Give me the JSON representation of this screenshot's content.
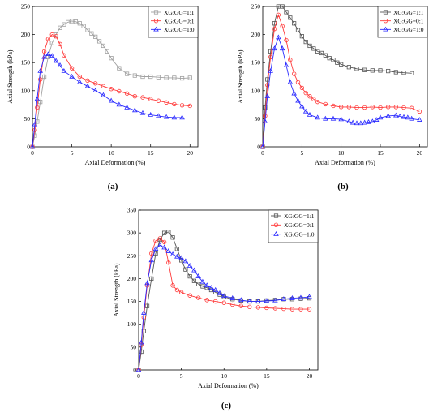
{
  "chart_data": [
    {
      "type": "line",
      "panel_label": "(a)",
      "xlabel": "Axial Deformation (%)",
      "ylabel": "Axial Strength (kPa)",
      "xlim": [
        0,
        21
      ],
      "ylim": [
        0,
        250
      ],
      "xticks": [
        0,
        5,
        10,
        15,
        20
      ],
      "yticks": [
        0,
        50,
        100,
        150,
        200,
        250
      ],
      "legend_placement": "top-right",
      "series": [
        {
          "name": "XG:GG=1:1",
          "color": "#a0a0a0",
          "marker": "square",
          "x": [
            0,
            0.3,
            0.6,
            1,
            1.5,
            2,
            2.5,
            3,
            3.5,
            4,
            4.5,
            5,
            5.5,
            6,
            6.5,
            7,
            7.5,
            8,
            8.5,
            9,
            9.5,
            10,
            11,
            12,
            13,
            14,
            15,
            16,
            17,
            18,
            19,
            20
          ],
          "y": [
            0,
            20,
            45,
            80,
            125,
            160,
            185,
            200,
            212,
            218,
            222,
            224,
            223,
            220,
            215,
            208,
            202,
            196,
            188,
            180,
            170,
            158,
            140,
            130,
            127,
            125,
            125,
            124,
            123,
            123,
            122,
            123
          ]
        },
        {
          "name": "XG:GG=0:1",
          "color": "#ff3b3b",
          "marker": "circle",
          "x": [
            0,
            0.3,
            0.6,
            1,
            1.5,
            2,
            2.5,
            3,
            3.5,
            4,
            5,
            6,
            7,
            8,
            9,
            10,
            11,
            12,
            13,
            14,
            15,
            16,
            17,
            18,
            19,
            20
          ],
          "y": [
            0,
            30,
            70,
            120,
            170,
            192,
            200,
            197,
            183,
            163,
            140,
            125,
            118,
            113,
            108,
            103,
            99,
            95,
            90,
            88,
            85,
            82,
            79,
            76,
            74,
            73
          ]
        },
        {
          "name": "XG:GG=1:0",
          "color": "#2a2aff",
          "marker": "triangle",
          "x": [
            0,
            0.3,
            0.6,
            1,
            1.5,
            2,
            2.5,
            3,
            3.5,
            4,
            5,
            6,
            7,
            8,
            9,
            10,
            11,
            12,
            13,
            14,
            15,
            16,
            17,
            18,
            19
          ],
          "y": [
            0,
            40,
            85,
            135,
            160,
            165,
            162,
            153,
            145,
            135,
            125,
            115,
            108,
            100,
            92,
            82,
            75,
            70,
            65,
            60,
            57,
            55,
            53,
            52,
            52
          ]
        }
      ]
    },
    {
      "type": "line",
      "panel_label": "(b)",
      "xlabel": "Axial Deformation (%)",
      "ylabel": "Axial Strength (kPa)",
      "xlim": [
        0,
        21
      ],
      "ylim": [
        0,
        250
      ],
      "xticks": [
        0,
        5,
        10,
        15,
        20
      ],
      "yticks": [
        0,
        50,
        100,
        150,
        200,
        250
      ],
      "legend_placement": "top-right",
      "series": [
        {
          "name": "XG:GG=1:1",
          "color": "#555555",
          "marker": "square",
          "x": [
            0,
            0.3,
            0.6,
            1,
            1.5,
            2,
            2.5,
            3,
            3.5,
            4,
            4.5,
            5,
            5.5,
            6,
            6.5,
            7,
            7.5,
            8,
            8.5,
            9,
            9.5,
            10,
            11,
            12,
            13,
            14,
            15,
            16,
            17,
            18,
            19
          ],
          "y": [
            0,
            70,
            120,
            170,
            220,
            250,
            250,
            240,
            230,
            220,
            208,
            197,
            187,
            180,
            175,
            170,
            167,
            163,
            158,
            155,
            150,
            147,
            142,
            139,
            137,
            136,
            136,
            135,
            133,
            132,
            131
          ]
        },
        {
          "name": "XG:GG=0:1",
          "color": "#ff3b3b",
          "marker": "circle",
          "x": [
            0,
            0.3,
            0.6,
            1,
            1.5,
            2,
            2.5,
            3,
            3.5,
            4,
            4.5,
            5,
            5.5,
            6,
            6.5,
            7,
            8,
            9,
            10,
            11,
            12,
            13,
            14,
            15,
            16,
            17,
            18,
            19,
            20
          ],
          "y": [
            0,
            55,
            110,
            160,
            210,
            235,
            215,
            190,
            155,
            130,
            115,
            105,
            96,
            90,
            85,
            80,
            76,
            73,
            71,
            71,
            70,
            70,
            71,
            70,
            71,
            71,
            70,
            69,
            63
          ]
        },
        {
          "name": "XG:GG=1:0",
          "color": "#2a2aff",
          "marker": "triangle",
          "x": [
            0,
            0.3,
            0.6,
            1,
            1.5,
            2,
            2.5,
            3,
            3.5,
            4,
            4.5,
            5,
            5.5,
            6,
            7,
            8,
            9,
            10,
            11,
            11.5,
            12,
            12.5,
            13,
            13.5,
            14,
            14.5,
            15,
            16,
            17,
            17.5,
            18,
            18.5,
            19,
            20
          ],
          "y": [
            0,
            45,
            90,
            135,
            175,
            195,
            175,
            145,
            115,
            95,
            82,
            72,
            63,
            57,
            52,
            50,
            50,
            49,
            45,
            43,
            42,
            42,
            43,
            44,
            45,
            48,
            52,
            55,
            56,
            54,
            53,
            52,
            50,
            48
          ]
        }
      ]
    },
    {
      "type": "line",
      "panel_label": "(c)",
      "xlabel": "Axial Deformation (%)",
      "ylabel": "Axial Strength (kPa)",
      "xlim": [
        0,
        21
      ],
      "ylim": [
        0,
        350
      ],
      "xticks": [
        0,
        5,
        10,
        15,
        20
      ],
      "yticks": [
        0,
        50,
        100,
        150,
        200,
        250,
        300,
        350
      ],
      "legend_placement": "top-right",
      "series": [
        {
          "name": "XG:GG=1:1",
          "color": "#555555",
          "marker": "square",
          "x": [
            0,
            0.3,
            0.6,
            1,
            1.5,
            2,
            2.5,
            3,
            3.5,
            4,
            4.5,
            5,
            5.5,
            6,
            6.5,
            7,
            7.5,
            8,
            8.5,
            9,
            9.5,
            10,
            11,
            12,
            13,
            14,
            15,
            16,
            17,
            18,
            19,
            20
          ],
          "y": [
            0,
            40,
            85,
            140,
            200,
            255,
            285,
            300,
            302,
            290,
            265,
            240,
            220,
            205,
            195,
            188,
            183,
            180,
            175,
            170,
            165,
            160,
            155,
            152,
            150,
            150,
            152,
            153,
            155,
            155,
            156,
            157
          ]
        },
        {
          "name": "XG:GG=0:1",
          "color": "#ff3b3b",
          "marker": "circle",
          "x": [
            0,
            0.3,
            0.6,
            1,
            1.5,
            2,
            2.5,
            3,
            3.5,
            4,
            4.5,
            5,
            6,
            7,
            8,
            9,
            10,
            11,
            12,
            13,
            14,
            15,
            16,
            17,
            18,
            19,
            20
          ],
          "y": [
            0,
            55,
            115,
            185,
            255,
            283,
            288,
            280,
            235,
            185,
            175,
            170,
            163,
            158,
            153,
            150,
            147,
            143,
            140,
            138,
            137,
            136,
            135,
            134,
            133,
            133,
            133
          ]
        },
        {
          "name": "XG:GG=1:0",
          "color": "#2a2aff",
          "marker": "triangle",
          "x": [
            0,
            0.3,
            0.6,
            1,
            1.5,
            2,
            2.5,
            3,
            3.5,
            4,
            4.5,
            5,
            5.5,
            6,
            6.5,
            7,
            7.5,
            8,
            8.5,
            9,
            9.5,
            10,
            11,
            12,
            13,
            14,
            15,
            16,
            17,
            18,
            19,
            20
          ],
          "y": [
            0,
            60,
            125,
            190,
            240,
            265,
            273,
            268,
            260,
            253,
            248,
            245,
            238,
            228,
            218,
            205,
            193,
            185,
            180,
            175,
            168,
            162,
            157,
            153,
            150,
            150,
            151,
            152,
            155,
            157,
            158,
            160
          ]
        }
      ]
    }
  ]
}
